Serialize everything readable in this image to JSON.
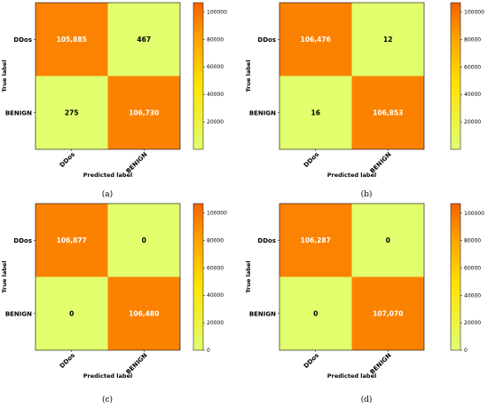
{
  "chart_data": [
    {
      "type": "heatmap",
      "caption": "(a)",
      "row_labels": [
        "DDos",
        "BENIGN"
      ],
      "col_labels": [
        "DDos",
        "BENIGN"
      ],
      "values": [
        [
          105885,
          467
        ],
        [
          275,
          106730
        ]
      ],
      "value_labels": [
        [
          "105,885",
          "467"
        ],
        [
          "275",
          "106,730"
        ]
      ],
      "xlabel": "Predicted label",
      "ylabel": "True label",
      "colorbar": {
        "range": [
          0,
          106730
        ],
        "ticks": [
          20000,
          40000,
          60000,
          80000,
          100000
        ],
        "tick_labels": [
          "20000",
          "40000",
          "60000",
          "80000",
          "100000"
        ]
      }
    },
    {
      "type": "heatmap",
      "caption": "(b)",
      "row_labels": [
        "DDos",
        "BENIGN"
      ],
      "col_labels": [
        "DDos",
        "BENIGN"
      ],
      "values": [
        [
          106476,
          12
        ],
        [
          16,
          106853
        ]
      ],
      "value_labels": [
        [
          "106,476",
          "12"
        ],
        [
          "16",
          "106,853"
        ]
      ],
      "xlabel": "Predicted label",
      "ylabel": "True label",
      "colorbar": {
        "range": [
          0,
          106853
        ],
        "ticks": [
          20000,
          40000,
          60000,
          80000,
          100000
        ],
        "tick_labels": [
          "20000",
          "40000",
          "60000",
          "80000",
          "100000"
        ]
      }
    },
    {
      "type": "heatmap",
      "caption": "(c)",
      "row_labels": [
        "DDos",
        "BENIGN"
      ],
      "col_labels": [
        "DDos",
        "BENIGN"
      ],
      "values": [
        [
          106877,
          0
        ],
        [
          0,
          106480
        ]
      ],
      "value_labels": [
        [
          "106,877",
          "0"
        ],
        [
          "0",
          "106,480"
        ]
      ],
      "xlabel": "Predicted label",
      "ylabel": "True label",
      "colorbar": {
        "range": [
          0,
          106877
        ],
        "ticks": [
          0,
          20000,
          40000,
          60000,
          80000,
          100000
        ],
        "tick_labels": [
          "0",
          "20000",
          "40000",
          "60000",
          "80000",
          "100000"
        ]
      }
    },
    {
      "type": "heatmap",
      "caption": "(d)",
      "row_labels": [
        "DDos",
        "BENIGN"
      ],
      "col_labels": [
        "DDos",
        "BENIGN"
      ],
      "values": [
        [
          106287,
          0
        ],
        [
          0,
          107070
        ]
      ],
      "value_labels": [
        [
          "106,287",
          "0"
        ],
        [
          "0",
          "107,070"
        ]
      ],
      "xlabel": "Predicted label",
      "ylabel": "True label",
      "colorbar": {
        "range": [
          0,
          107070
        ],
        "ticks": [
          0,
          20000,
          40000,
          60000,
          80000,
          100000
        ],
        "tick_labels": [
          "0",
          "20000",
          "40000",
          "60000",
          "80000",
          "100000"
        ]
      }
    }
  ],
  "colors": {
    "low": "#e2ff6e",
    "high": "#fb8200",
    "colorbar_top": "#f46200",
    "colorbar_mid": "#ffb500",
    "colorbar_bottom": "#e0ff73"
  }
}
